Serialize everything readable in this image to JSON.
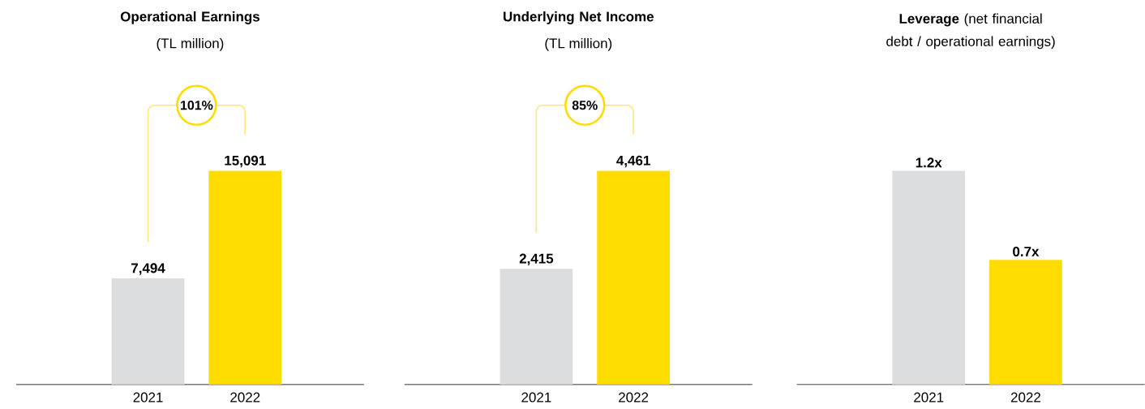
{
  "chart_data": [
    {
      "type": "bar",
      "title": "Operational Earnings",
      "subtitle": "(TL million)",
      "categories": [
        "2021",
        "2022"
      ],
      "values": [
        7494,
        15091
      ],
      "colors": [
        "#dcdddf",
        "#ffdc00"
      ],
      "value_labels": [
        "7,494",
        "15,091"
      ],
      "annotations": [
        "101%"
      ]
    },
    {
      "type": "bar",
      "title": "Underlying Net Income",
      "subtitle": "(TL million)",
      "categories": [
        "2021",
        "2022"
      ],
      "values": [
        2415,
        4461
      ],
      "colors": [
        "#dcdddf",
        "#ffdc00"
      ],
      "value_labels": [
        "2,415",
        "4,461"
      ],
      "annotations": [
        "85%"
      ]
    },
    {
      "type": "bar",
      "title": "**Leverage** (net financial debt / operational earnings)",
      "categories": [
        "2021",
        "2022"
      ],
      "values": [
        1.2,
        0.7
      ],
      "colors": [
        "#dcdddf",
        "#ffdc00"
      ],
      "value_labels": [
        "1.2x",
        "0.7x"
      ]
    }
  ]
}
